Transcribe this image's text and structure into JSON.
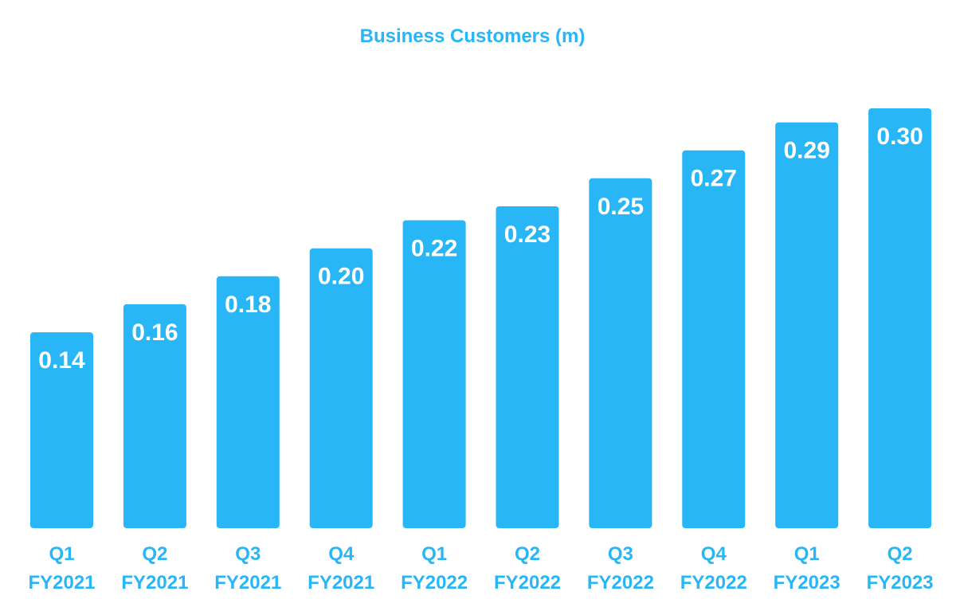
{
  "chart_data": {
    "type": "bar",
    "title": "Business Customers (m)",
    "categories": [
      [
        "Q1",
        "FY2021"
      ],
      [
        "Q2",
        "FY2021"
      ],
      [
        "Q3",
        "FY2021"
      ],
      [
        "Q4",
        "FY2021"
      ],
      [
        "Q1",
        "FY2022"
      ],
      [
        "Q2",
        "FY2022"
      ],
      [
        "Q3",
        "FY2022"
      ],
      [
        "Q4",
        "FY2022"
      ],
      [
        "Q1",
        "FY2023"
      ],
      [
        "Q2",
        "FY2023"
      ]
    ],
    "values": [
      0.14,
      0.16,
      0.18,
      0.2,
      0.22,
      0.23,
      0.25,
      0.27,
      0.29,
      0.3
    ],
    "value_labels": [
      "0.14",
      "0.16",
      "0.18",
      "0.20",
      "0.22",
      "0.23",
      "0.25",
      "0.27",
      "0.29",
      "0.30"
    ],
    "bar_color": "#29b6f6",
    "label_color": "#ffffff",
    "axis_text_color": "#29b6f6",
    "ylim": [
      0,
      0.3
    ],
    "grid": false,
    "legend": "none"
  }
}
